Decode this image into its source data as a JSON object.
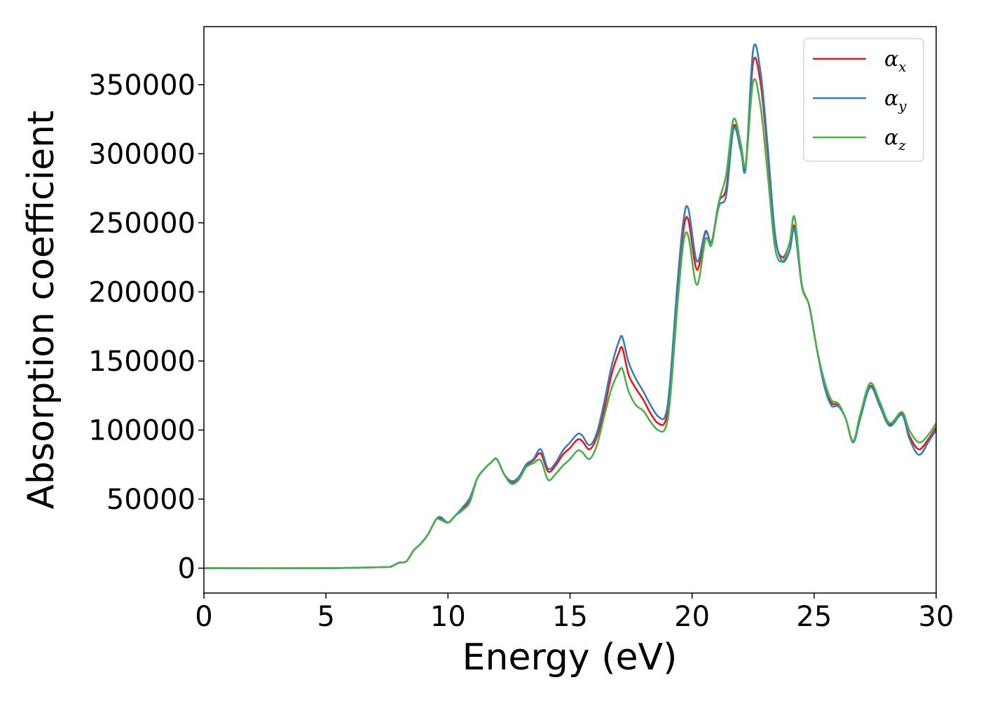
{
  "chart_data": {
    "type": "line",
    "xlabel": "Energy (eV)",
    "ylabel": "Absorption coefficient",
    "xlim": [
      0,
      30
    ],
    "ylim": [
      -18000,
      392000
    ],
    "xticks": [
      0,
      5,
      10,
      15,
      20,
      25,
      30
    ],
    "yticks": [
      0,
      50000,
      100000,
      150000,
      200000,
      250000,
      300000,
      350000
    ],
    "grid": false,
    "legend_position": "top-right",
    "x": [
      0,
      5,
      7.4,
      7.7,
      8.0,
      8.3,
      8.6,
      8.9,
      9.2,
      9.5,
      9.7,
      10.0,
      10.3,
      10.6,
      10.9,
      11.2,
      11.5,
      11.8,
      12.0,
      12.3,
      12.6,
      12.9,
      13.2,
      13.5,
      13.8,
      14.1,
      14.4,
      14.7,
      15.0,
      15.3,
      15.5,
      15.8,
      16.1,
      16.4,
      16.7,
      17.0,
      17.15,
      17.4,
      17.7,
      18.0,
      18.3,
      18.6,
      18.9,
      19.1,
      19.4,
      19.65,
      19.85,
      20.2,
      20.55,
      20.8,
      21.1,
      21.4,
      21.7,
      22.0,
      22.2,
      22.5,
      22.8,
      23.1,
      23.4,
      23.7,
      24.0,
      24.2,
      24.5,
      24.8,
      25.1,
      25.4,
      25.7,
      26.0,
      26.3,
      26.6,
      26.9,
      27.3,
      27.7,
      28.1,
      28.6,
      28.9,
      29.3,
      29.7,
      30.0
    ],
    "series": [
      {
        "name": "α",
        "subscript": "x",
        "color": "#e41a1c",
        "values": [
          0,
          0,
          800,
          1500,
          4000,
          5000,
          13000,
          18000,
          25000,
          35000,
          36000,
          33000,
          38000,
          43000,
          50000,
          65000,
          72000,
          77000,
          79000,
          68000,
          62000,
          65000,
          74000,
          78000,
          83000,
          70000,
          74000,
          82000,
          87000,
          93000,
          92000,
          86000,
          95000,
          115000,
          140000,
          156000,
          159000,
          140000,
          130000,
          122000,
          112000,
          105000,
          106000,
          130000,
          200000,
          245000,
          252000,
          216000,
          243000,
          236000,
          265000,
          275000,
          320000,
          305000,
          292000,
          366000,
          352000,
          300000,
          240000,
          225000,
          235000,
          247000,
          205000,
          190000,
          160000,
          135000,
          120000,
          118000,
          108000,
          92000,
          110000,
          132000,
          118000,
          104000,
          112000,
          96000,
          86000,
          94000,
          102000
        ]
      },
      {
        "name": "α",
        "subscript": "y",
        "color": "#377eb8",
        "values": [
          0,
          0,
          800,
          1500,
          4000,
          5000,
          13000,
          18000,
          25000,
          35000,
          37000,
          33000,
          38000,
          44000,
          51000,
          65000,
          72000,
          77000,
          79000,
          68000,
          63000,
          66000,
          75000,
          79000,
          86000,
          72000,
          76000,
          85000,
          91000,
          97000,
          96000,
          89000,
          98000,
          120000,
          146000,
          164000,
          167000,
          149000,
          137000,
          128000,
          118000,
          110000,
          110000,
          135000,
          206000,
          252000,
          260000,
          222000,
          244000,
          236000,
          262000,
          270000,
          318000,
          302000,
          290000,
          375000,
          360000,
          305000,
          242000,
          222000,
          230000,
          245000,
          204000,
          190000,
          160000,
          133000,
          118000,
          117000,
          108000,
          91000,
          109000,
          131000,
          117000,
          103000,
          111000,
          94000,
          82000,
          92000,
          100000
        ]
      },
      {
        "name": "α",
        "subscript": "z",
        "color": "#4daf4a",
        "values": [
          0,
          0,
          800,
          1500,
          4000,
          5000,
          13000,
          18000,
          25000,
          35000,
          35000,
          33000,
          38000,
          42000,
          48000,
          65000,
          72000,
          77000,
          79000,
          68000,
          61000,
          64000,
          73000,
          76000,
          78000,
          64000,
          68000,
          74000,
          79000,
          85000,
          84000,
          79000,
          89000,
          110000,
          130000,
          142000,
          144000,
          128000,
          118000,
          114000,
          106000,
          100000,
          101000,
          122000,
          190000,
          236000,
          240000,
          205000,
          238000,
          234000,
          265000,
          285000,
          325000,
          307000,
          292000,
          352000,
          335000,
          285000,
          232000,
          222000,
          236000,
          254000,
          205000,
          190000,
          160000,
          137000,
          122000,
          119000,
          108000,
          92000,
          112000,
          134000,
          120000,
          105000,
          113000,
          100000,
          91000,
          97000,
          105000
        ]
      }
    ]
  }
}
